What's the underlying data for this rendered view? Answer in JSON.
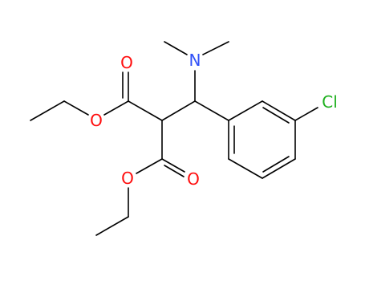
{
  "atoms": [
    {
      "label": "O"
    },
    {
      "label": "O"
    },
    {
      "label": "O"
    },
    {
      "label": "O"
    },
    {
      "label": "N"
    },
    {
      "label": "Cl"
    }
  ]
}
